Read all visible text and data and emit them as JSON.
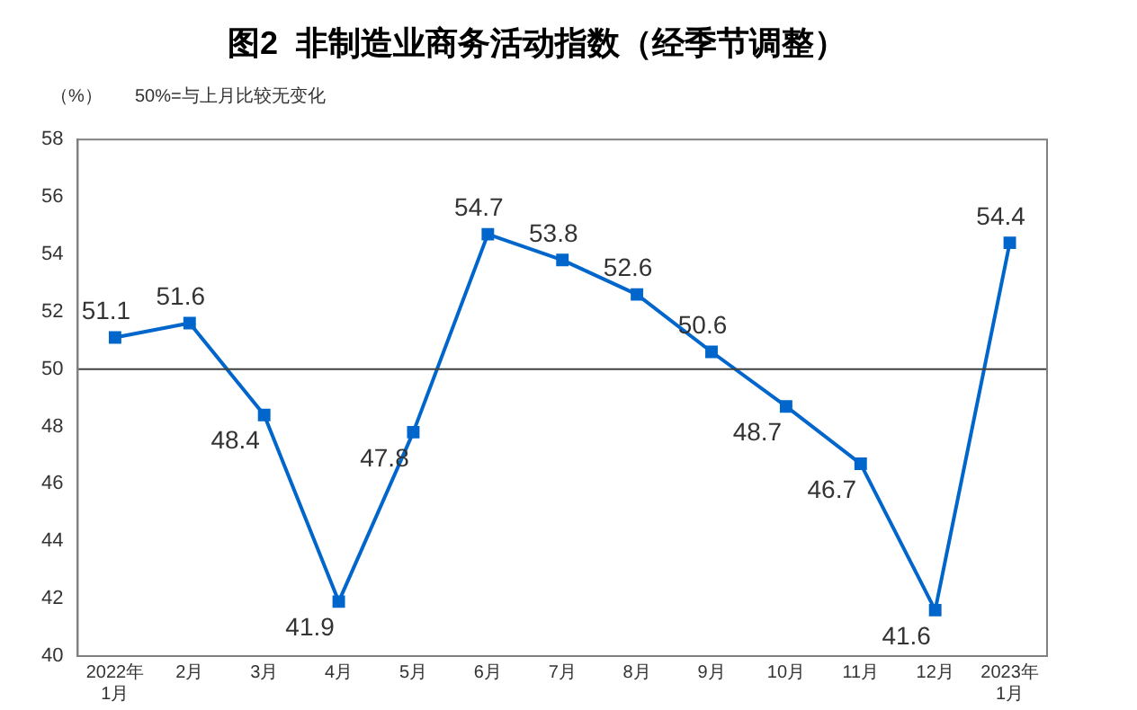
{
  "chart_data": {
    "type": "line",
    "title": "图2  非制造业商务活动指数（经季节调整）",
    "ylabel": "（%）",
    "annotations": [
      "50%=与上月比较无变化"
    ],
    "categories": [
      "2022年\n1月",
      "2月",
      "3月",
      "4月",
      "5月",
      "6月",
      "7月",
      "8月",
      "9月",
      "10月",
      "11月",
      "12月",
      "2023年\n1月"
    ],
    "series": [
      {
        "color": "#0066cc",
        "values": [
          51.1,
          51.6,
          48.4,
          41.9,
          47.8,
          54.7,
          53.8,
          52.6,
          50.6,
          48.7,
          46.7,
          41.6,
          54.4
        ]
      }
    ],
    "ylim": [
      40,
      58
    ],
    "yticks": [
      40,
      42,
      44,
      46,
      48,
      50,
      52,
      54,
      56,
      58
    ],
    "grid": false,
    "legend": false,
    "marker": "square",
    "line_style": "solid",
    "data_labels": true,
    "ref_lines": [
      {
        "axis": "y",
        "value": 50,
        "color": "#404040"
      }
    ]
  }
}
